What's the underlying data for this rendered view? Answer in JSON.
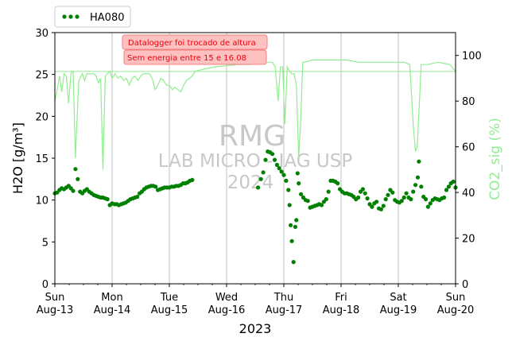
{
  "chart_data": {
    "type": "scatter",
    "legend": {
      "placement": "top-left",
      "label": "HA080",
      "color": "#008000"
    },
    "y_left": {
      "label": "H2O [g/m³]",
      "ylim": [
        0,
        30
      ],
      "ticks": [
        "0",
        "5",
        "10",
        "15",
        "20",
        "25",
        "30"
      ]
    },
    "y_right": {
      "label": "CO2_sig (%)",
      "ylim": [
        0,
        110
      ],
      "ticks": [
        "0",
        "20",
        "40",
        "60",
        "80",
        "100"
      ],
      "color": "#90ee90"
    },
    "x_axis": {
      "label": "2023",
      "xlim": [
        "2023-08-13 00:00",
        "2023-08-20 00:00"
      ],
      "ticks": [
        {
          "day": "Sun",
          "date": "Aug-13"
        },
        {
          "day": "Mon",
          "date": "Aug-14"
        },
        {
          "day": "Tue",
          "date": "Aug-15"
        },
        {
          "day": "Wed",
          "date": "Aug-16"
        },
        {
          "day": "Thu",
          "date": "Aug-17"
        },
        {
          "day": "Fri",
          "date": "Aug-18"
        },
        {
          "day": "Sat",
          "date": "Aug-19"
        },
        {
          "day": "Sun",
          "date": "Aug-20"
        }
      ],
      "grid": "vertical"
    },
    "annotations": [
      "Datalogger foi trocado de altura",
      "Sem energia entre 15 e 16.08"
    ],
    "annotation_colors": {
      "text": "#e8000b",
      "fill": "#ffc0c0",
      "edge": "#f08080"
    },
    "watermark": [
      "RMG",
      "LAB MICRO - IAG USP",
      "2024"
    ],
    "co2_threshold": 93,
    "series": [
      {
        "name": "HA080",
        "axis": "left",
        "color": "#008000",
        "points": [
          [
            0.0,
            10.8
          ],
          [
            0.04,
            10.9
          ],
          [
            0.08,
            11.2
          ],
          [
            0.12,
            11.4
          ],
          [
            0.16,
            11.3
          ],
          [
            0.2,
            11.5
          ],
          [
            0.24,
            11.7
          ],
          [
            0.28,
            11.4
          ],
          [
            0.32,
            11.1
          ],
          [
            0.36,
            13.7
          ],
          [
            0.4,
            12.5
          ],
          [
            0.44,
            11.0
          ],
          [
            0.48,
            10.8
          ],
          [
            0.52,
            11.1
          ],
          [
            0.56,
            11.3
          ],
          [
            0.6,
            11.0
          ],
          [
            0.64,
            10.8
          ],
          [
            0.68,
            10.6
          ],
          [
            0.72,
            10.5
          ],
          [
            0.76,
            10.4
          ],
          [
            0.8,
            10.3
          ],
          [
            0.84,
            10.3
          ],
          [
            0.88,
            10.2
          ],
          [
            0.92,
            10.1
          ],
          [
            0.96,
            9.4
          ],
          [
            1.0,
            9.6
          ],
          [
            1.04,
            9.5
          ],
          [
            1.08,
            9.5
          ],
          [
            1.12,
            9.4
          ],
          [
            1.16,
            9.5
          ],
          [
            1.2,
            9.6
          ],
          [
            1.24,
            9.7
          ],
          [
            1.28,
            9.9
          ],
          [
            1.32,
            10.1
          ],
          [
            1.36,
            10.2
          ],
          [
            1.4,
            10.3
          ],
          [
            1.44,
            10.4
          ],
          [
            1.48,
            10.8
          ],
          [
            1.52,
            11.0
          ],
          [
            1.56,
            11.3
          ],
          [
            1.6,
            11.5
          ],
          [
            1.64,
            11.6
          ],
          [
            1.68,
            11.7
          ],
          [
            1.72,
            11.7
          ],
          [
            1.76,
            11.6
          ],
          [
            1.8,
            11.2
          ],
          [
            1.84,
            11.3
          ],
          [
            1.88,
            11.4
          ],
          [
            1.92,
            11.5
          ],
          [
            1.96,
            11.5
          ],
          [
            2.0,
            11.5
          ],
          [
            2.04,
            11.6
          ],
          [
            2.08,
            11.6
          ],
          [
            2.12,
            11.7
          ],
          [
            2.16,
            11.7
          ],
          [
            2.2,
            11.8
          ],
          [
            2.24,
            12.0
          ],
          [
            2.28,
            12.0
          ],
          [
            2.32,
            12.1
          ],
          [
            2.36,
            12.3
          ],
          [
            2.4,
            12.4
          ],
          [
            3.55,
            11.5
          ],
          [
            3.6,
            12.5
          ],
          [
            3.64,
            13.3
          ],
          [
            3.68,
            14.8
          ],
          [
            3.72,
            15.8
          ],
          [
            3.76,
            15.7
          ],
          [
            3.8,
            15.5
          ],
          [
            3.84,
            14.8
          ],
          [
            3.88,
            14.2
          ],
          [
            3.92,
            13.8
          ],
          [
            3.96,
            13.4
          ],
          [
            4.0,
            13.0
          ],
          [
            4.04,
            12.3
          ],
          [
            4.08,
            11.2
          ],
          [
            4.1,
            9.4
          ],
          [
            4.12,
            7.0
          ],
          [
            4.14,
            5.1
          ],
          [
            4.17,
            2.6
          ],
          [
            4.2,
            6.8
          ],
          [
            4.22,
            7.6
          ],
          [
            4.24,
            13.2
          ],
          [
            4.26,
            12.0
          ],
          [
            4.3,
            10.7
          ],
          [
            4.34,
            10.3
          ],
          [
            4.38,
            10.0
          ],
          [
            4.42,
            9.9
          ],
          [
            4.46,
            9.1
          ],
          [
            4.5,
            9.2
          ],
          [
            4.54,
            9.3
          ],
          [
            4.58,
            9.4
          ],
          [
            4.62,
            9.5
          ],
          [
            4.66,
            9.4
          ],
          [
            4.7,
            9.8
          ],
          [
            4.74,
            10.1
          ],
          [
            4.78,
            11.0
          ],
          [
            4.82,
            12.3
          ],
          [
            4.86,
            12.3
          ],
          [
            4.9,
            12.2
          ],
          [
            4.94,
            12.0
          ],
          [
            4.98,
            11.3
          ],
          [
            5.02,
            11.0
          ],
          [
            5.06,
            10.8
          ],
          [
            5.1,
            10.8
          ],
          [
            5.14,
            10.7
          ],
          [
            5.18,
            10.6
          ],
          [
            5.22,
            10.4
          ],
          [
            5.26,
            10.1
          ],
          [
            5.3,
            10.3
          ],
          [
            5.34,
            11.0
          ],
          [
            5.38,
            11.3
          ],
          [
            5.42,
            10.8
          ],
          [
            5.46,
            10.2
          ],
          [
            5.5,
            9.5
          ],
          [
            5.54,
            9.2
          ],
          [
            5.58,
            9.6
          ],
          [
            5.62,
            9.8
          ],
          [
            5.66,
            9.0
          ],
          [
            5.7,
            8.9
          ],
          [
            5.74,
            9.3
          ],
          [
            5.78,
            10.1
          ],
          [
            5.82,
            10.6
          ],
          [
            5.86,
            11.2
          ],
          [
            5.9,
            10.9
          ],
          [
            5.94,
            10.0
          ],
          [
            5.98,
            9.8
          ],
          [
            6.02,
            9.7
          ],
          [
            6.06,
            9.9
          ],
          [
            6.1,
            10.3
          ],
          [
            6.14,
            10.8
          ],
          [
            6.18,
            10.3
          ],
          [
            6.22,
            10.1
          ],
          [
            6.26,
            11.0
          ],
          [
            6.3,
            11.8
          ],
          [
            6.34,
            12.7
          ],
          [
            6.36,
            14.6
          ],
          [
            6.4,
            11.6
          ],
          [
            6.44,
            10.4
          ],
          [
            6.48,
            10.1
          ],
          [
            6.52,
            9.2
          ],
          [
            6.56,
            9.6
          ],
          [
            6.6,
            10.0
          ],
          [
            6.64,
            10.2
          ],
          [
            6.68,
            10.1
          ],
          [
            6.72,
            10.0
          ],
          [
            6.76,
            10.2
          ],
          [
            6.8,
            10.3
          ],
          [
            6.84,
            11.2
          ],
          [
            6.88,
            11.6
          ],
          [
            6.92,
            12.0
          ],
          [
            6.96,
            12.2
          ],
          [
            7.0,
            11.5
          ]
        ]
      },
      {
        "name": "CO2_sig",
        "axis": "right",
        "color": "#90ee90",
        "points": [
          [
            0.0,
            80
          ],
          [
            0.04,
            85
          ],
          [
            0.08,
            91
          ],
          [
            0.12,
            84
          ],
          [
            0.16,
            92
          ],
          [
            0.2,
            91
          ],
          [
            0.24,
            79
          ],
          [
            0.28,
            92
          ],
          [
            0.3,
            93
          ],
          [
            0.32,
            93
          ],
          [
            0.36,
            55
          ],
          [
            0.38,
            68
          ],
          [
            0.42,
            89
          ],
          [
            0.48,
            92
          ],
          [
            0.52,
            89
          ],
          [
            0.56,
            92
          ],
          [
            0.6,
            92
          ],
          [
            0.64,
            92
          ],
          [
            0.68,
            92
          ],
          [
            0.72,
            91
          ],
          [
            0.76,
            88
          ],
          [
            0.8,
            90
          ],
          [
            0.82,
            70
          ],
          [
            0.84,
            50
          ],
          [
            0.86,
            70
          ],
          [
            0.88,
            91
          ],
          [
            0.92,
            92
          ],
          [
            0.96,
            93
          ],
          [
            1.0,
            90
          ],
          [
            1.05,
            92
          ],
          [
            1.1,
            90
          ],
          [
            1.15,
            91
          ],
          [
            1.2,
            89
          ],
          [
            1.25,
            90
          ],
          [
            1.3,
            87
          ],
          [
            1.35,
            90
          ],
          [
            1.4,
            91
          ],
          [
            1.45,
            89
          ],
          [
            1.5,
            91
          ],
          [
            1.55,
            92
          ],
          [
            1.6,
            92
          ],
          [
            1.65,
            92
          ],
          [
            1.7,
            90
          ],
          [
            1.75,
            85
          ],
          [
            1.8,
            87
          ],
          [
            1.85,
            90
          ],
          [
            1.9,
            89
          ],
          [
            1.95,
            87
          ],
          [
            2.0,
            87
          ],
          [
            2.05,
            85
          ],
          [
            2.1,
            86
          ],
          [
            2.15,
            85
          ],
          [
            2.2,
            84
          ],
          [
            2.25,
            87
          ],
          [
            2.3,
            89
          ],
          [
            2.35,
            90
          ],
          [
            2.4,
            91
          ],
          [
            2.45,
            93
          ],
          [
            2.6,
            94
          ],
          [
            2.8,
            95
          ],
          [
            3.0,
            95.5
          ],
          [
            3.2,
            96
          ],
          [
            3.4,
            96
          ],
          [
            3.6,
            97
          ],
          [
            3.7,
            97
          ],
          [
            3.8,
            97
          ],
          [
            3.85,
            95
          ],
          [
            3.9,
            80
          ],
          [
            3.94,
            95
          ],
          [
            3.98,
            95
          ],
          [
            4.02,
            70
          ],
          [
            4.06,
            95
          ],
          [
            4.1,
            93
          ],
          [
            4.14,
            92
          ],
          [
            4.18,
            92
          ],
          [
            4.22,
            87
          ],
          [
            4.26,
            55
          ],
          [
            4.3,
            75
          ],
          [
            4.33,
            97
          ],
          [
            4.36,
            97
          ],
          [
            4.5,
            98
          ],
          [
            4.7,
            98
          ],
          [
            4.9,
            98
          ],
          [
            5.1,
            98
          ],
          [
            5.3,
            97
          ],
          [
            5.5,
            97
          ],
          [
            5.7,
            97
          ],
          [
            5.9,
            97
          ],
          [
            6.1,
            97
          ],
          [
            6.2,
            96
          ],
          [
            6.26,
            70
          ],
          [
            6.3,
            58
          ],
          [
            6.33,
            60
          ],
          [
            6.36,
            75
          ],
          [
            6.4,
            96
          ],
          [
            6.5,
            96
          ],
          [
            6.7,
            97
          ],
          [
            6.9,
            96
          ],
          [
            7.0,
            93
          ]
        ]
      }
    ]
  }
}
